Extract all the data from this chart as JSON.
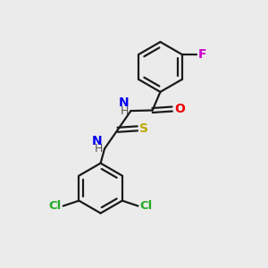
{
  "background_color": "#ebebeb",
  "bond_color": "#1a1a1a",
  "atom_colors": {
    "N": "#0000ee",
    "O": "#ee0000",
    "S": "#bbaa00",
    "F": "#cc00cc",
    "Cl": "#22aa22",
    "C": "#1a1a1a",
    "H": "#404040"
  },
  "figsize": [
    3.0,
    3.0
  ],
  "dpi": 100,
  "lw": 1.6,
  "ring_r": 0.95
}
